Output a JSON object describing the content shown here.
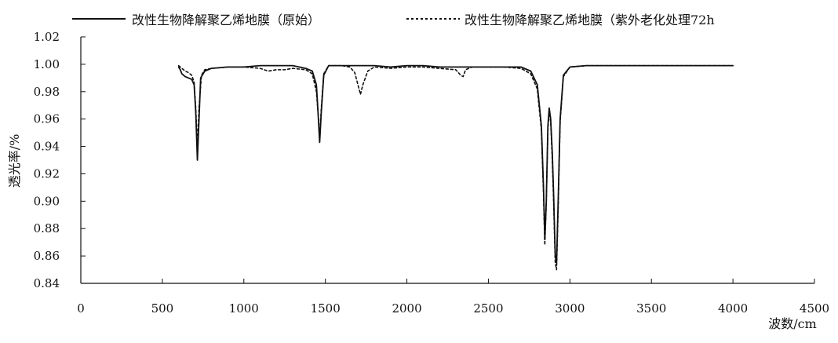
{
  "chart_data": {
    "type": "line",
    "title": "",
    "xlabel": "波数/cm",
    "ylabel": "透光率/%",
    "xlim": [
      0,
      4500
    ],
    "ylim": [
      0.84,
      1.02
    ],
    "xticks": [
      0,
      500,
      1000,
      1500,
      2000,
      2500,
      3000,
      3500,
      4000,
      4500
    ],
    "yticks": [
      0.84,
      0.86,
      0.88,
      0.9,
      0.92,
      0.94,
      0.96,
      0.98,
      1.0,
      1.02
    ],
    "grid": false,
    "legend_position": "top",
    "series": [
      {
        "name": "改性生物降解聚乙烯地膜（原始）",
        "line_style": "solid",
        "color": "#111111",
        "points": [
          [
            600,
            0.998
          ],
          [
            610,
            0.996
          ],
          [
            620,
            0.993
          ],
          [
            640,
            0.991
          ],
          [
            660,
            0.99
          ],
          [
            680,
            0.989
          ],
          [
            695,
            0.985
          ],
          [
            705,
            0.965
          ],
          [
            715,
            0.93
          ],
          [
            725,
            0.96
          ],
          [
            735,
            0.99
          ],
          [
            760,
            0.995
          ],
          [
            800,
            0.997
          ],
          [
            900,
            0.998
          ],
          [
            1000,
            0.998
          ],
          [
            1100,
            0.999
          ],
          [
            1200,
            0.999
          ],
          [
            1300,
            0.999
          ],
          [
            1380,
            0.997
          ],
          [
            1420,
            0.995
          ],
          [
            1445,
            0.985
          ],
          [
            1455,
            0.965
          ],
          [
            1465,
            0.943
          ],
          [
            1475,
            0.965
          ],
          [
            1490,
            0.992
          ],
          [
            1520,
            0.999
          ],
          [
            1600,
            0.999
          ],
          [
            1700,
            0.999
          ],
          [
            1800,
            0.999
          ],
          [
            1900,
            0.998
          ],
          [
            2000,
            0.999
          ],
          [
            2100,
            0.999
          ],
          [
            2200,
            0.998
          ],
          [
            2300,
            0.998
          ],
          [
            2400,
            0.998
          ],
          [
            2500,
            0.998
          ],
          [
            2600,
            0.998
          ],
          [
            2700,
            0.998
          ],
          [
            2760,
            0.995
          ],
          [
            2800,
            0.985
          ],
          [
            2825,
            0.955
          ],
          [
            2838,
            0.91
          ],
          [
            2846,
            0.872
          ],
          [
            2855,
            0.9
          ],
          [
            2865,
            0.955
          ],
          [
            2873,
            0.968
          ],
          [
            2882,
            0.96
          ],
          [
            2892,
            0.935
          ],
          [
            2900,
            0.905
          ],
          [
            2910,
            0.86
          ],
          [
            2918,
            0.855
          ],
          [
            2928,
            0.9
          ],
          [
            2940,
            0.96
          ],
          [
            2960,
            0.992
          ],
          [
            3000,
            0.998
          ],
          [
            3100,
            0.999
          ],
          [
            3200,
            0.999
          ],
          [
            3400,
            0.999
          ],
          [
            3600,
            0.999
          ],
          [
            3800,
            0.999
          ],
          [
            3900,
            0.999
          ],
          [
            4000,
            0.999
          ]
        ]
      },
      {
        "name": "改性生物降解聚乙烯地膜（紫外老化处理72h",
        "line_style": "dashed",
        "color": "#111111",
        "points": [
          [
            600,
            0.999
          ],
          [
            620,
            0.997
          ],
          [
            640,
            0.995
          ],
          [
            660,
            0.994
          ],
          [
            680,
            0.992
          ],
          [
            695,
            0.987
          ],
          [
            705,
            0.968
          ],
          [
            715,
            0.94
          ],
          [
            725,
            0.968
          ],
          [
            740,
            0.992
          ],
          [
            760,
            0.996
          ],
          [
            800,
            0.997
          ],
          [
            900,
            0.998
          ],
          [
            1000,
            0.998
          ],
          [
            1100,
            0.997
          ],
          [
            1150,
            0.995
          ],
          [
            1200,
            0.996
          ],
          [
            1250,
            0.996
          ],
          [
            1300,
            0.997
          ],
          [
            1380,
            0.996
          ],
          [
            1420,
            0.993
          ],
          [
            1445,
            0.98
          ],
          [
            1455,
            0.965
          ],
          [
            1465,
            0.946
          ],
          [
            1475,
            0.968
          ],
          [
            1490,
            0.993
          ],
          [
            1520,
            0.999
          ],
          [
            1600,
            0.999
          ],
          [
            1650,
            0.998
          ],
          [
            1680,
            0.994
          ],
          [
            1700,
            0.985
          ],
          [
            1715,
            0.978
          ],
          [
            1730,
            0.985
          ],
          [
            1760,
            0.995
          ],
          [
            1800,
            0.998
          ],
          [
            1900,
            0.997
          ],
          [
            2000,
            0.998
          ],
          [
            2100,
            0.998
          ],
          [
            2200,
            0.997
          ],
          [
            2300,
            0.996
          ],
          [
            2330,
            0.992
          ],
          [
            2345,
            0.991
          ],
          [
            2360,
            0.996
          ],
          [
            2400,
            0.998
          ],
          [
            2500,
            0.998
          ],
          [
            2600,
            0.998
          ],
          [
            2700,
            0.997
          ],
          [
            2760,
            0.993
          ],
          [
            2800,
            0.982
          ],
          [
            2825,
            0.952
          ],
          [
            2838,
            0.905
          ],
          [
            2846,
            0.868
          ],
          [
            2855,
            0.898
          ],
          [
            2865,
            0.952
          ],
          [
            2873,
            0.966
          ],
          [
            2882,
            0.958
          ],
          [
            2892,
            0.93
          ],
          [
            2900,
            0.9
          ],
          [
            2910,
            0.855
          ],
          [
            2918,
            0.85
          ],
          [
            2928,
            0.895
          ],
          [
            2940,
            0.958
          ],
          [
            2960,
            0.991
          ],
          [
            3000,
            0.998
          ],
          [
            3100,
            0.999
          ],
          [
            3200,
            0.999
          ],
          [
            3400,
            0.999
          ],
          [
            3600,
            0.999
          ],
          [
            3800,
            0.999
          ],
          [
            3900,
            0.999
          ],
          [
            4000,
            0.999
          ]
        ]
      }
    ]
  }
}
